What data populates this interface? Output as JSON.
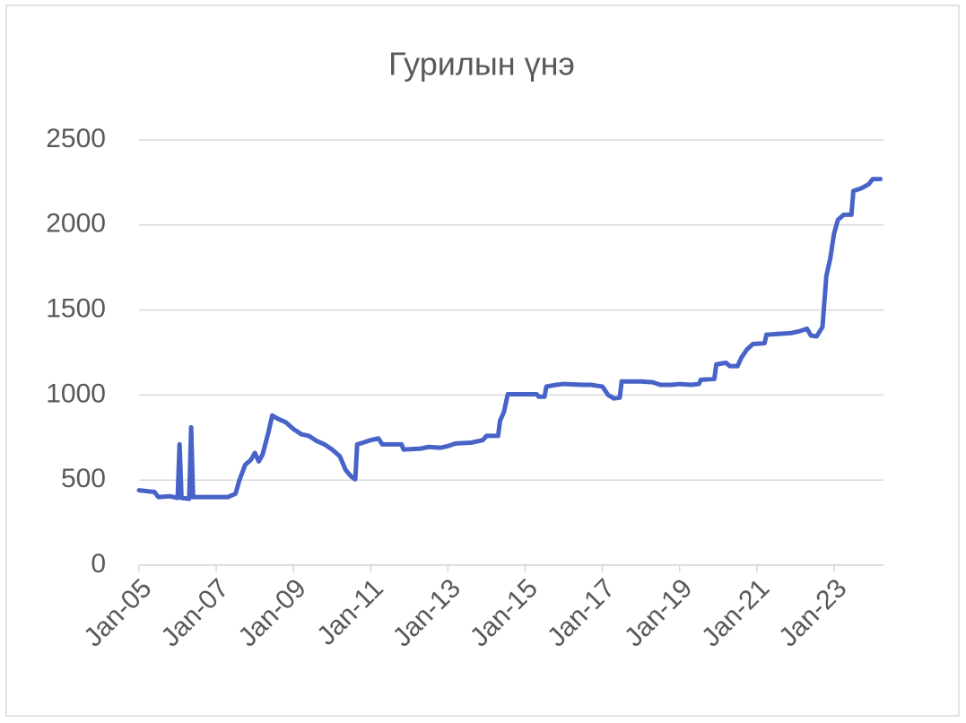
{
  "chart_data": {
    "type": "line",
    "title": "Гурилын үнэ",
    "x": [
      2005.0,
      2005.4,
      2005.5,
      2005.8,
      2006.0,
      2006.05,
      2006.1,
      2006.3,
      2006.35,
      2006.4,
      2007.0,
      2007.3,
      2007.5,
      2007.6,
      2007.75,
      2007.9,
      2008.0,
      2008.1,
      2008.2,
      2008.35,
      2008.45,
      2008.6,
      2008.8,
      2009.0,
      2009.2,
      2009.4,
      2009.6,
      2009.8,
      2010.0,
      2010.2,
      2010.35,
      2010.5,
      2010.6,
      2010.65,
      2010.8,
      2011.0,
      2011.2,
      2011.3,
      2011.8,
      2011.85,
      2012.3,
      2012.5,
      2012.8,
      2013.0,
      2013.2,
      2013.6,
      2013.9,
      2014.0,
      2014.3,
      2014.35,
      2014.45,
      2014.55,
      2015.3,
      2015.35,
      2015.5,
      2015.55,
      2015.8,
      2016.0,
      2016.5,
      2016.7,
      2017.0,
      2017.15,
      2017.3,
      2017.45,
      2017.5,
      2018.0,
      2018.3,
      2018.5,
      2018.8,
      2019.0,
      2019.3,
      2019.5,
      2019.55,
      2019.9,
      2019.95,
      2020.2,
      2020.3,
      2020.5,
      2020.6,
      2020.75,
      2020.9,
      2021.2,
      2021.25,
      2021.6,
      2021.9,
      2022.1,
      2022.3,
      2022.4,
      2022.55,
      2022.7,
      2022.8,
      2022.9,
      2023.0,
      2023.1,
      2023.25,
      2023.45,
      2023.5,
      2023.7,
      2023.9,
      2024.0,
      2024.2
    ],
    "series": [
      {
        "name": "Гурилын үнэ",
        "color": "#4763c8",
        "values": [
          440,
          430,
          400,
          405,
          395,
          710,
          395,
          390,
          810,
          400,
          400,
          400,
          420,
          500,
          590,
          620,
          660,
          610,
          650,
          780,
          880,
          860,
          840,
          800,
          770,
          760,
          730,
          710,
          680,
          640,
          560,
          520,
          505,
          710,
          720,
          735,
          745,
          710,
          710,
          680,
          685,
          695,
          690,
          700,
          715,
          720,
          735,
          760,
          760,
          850,
          900,
          1005,
          1005,
          990,
          990,
          1050,
          1060,
          1065,
          1060,
          1060,
          1050,
          1000,
          980,
          985,
          1080,
          1080,
          1075,
          1060,
          1060,
          1065,
          1060,
          1065,
          1090,
          1095,
          1180,
          1190,
          1170,
          1170,
          1220,
          1270,
          1300,
          1305,
          1355,
          1360,
          1365,
          1375,
          1390,
          1350,
          1345,
          1400,
          1700,
          1800,
          1950,
          2030,
          2060,
          2060,
          2200,
          2215,
          2240,
          2270,
          2270
        ]
      }
    ],
    "xlim": [
      2005,
      2024.28
    ],
    "xticks": [
      {
        "value": 2005,
        "label": "Jan-05"
      },
      {
        "value": 2007,
        "label": "Jan-07"
      },
      {
        "value": 2009,
        "label": "Jan-09"
      },
      {
        "value": 2011,
        "label": "Jan-11"
      },
      {
        "value": 2013,
        "label": "Jan-13"
      },
      {
        "value": 2015,
        "label": "Jan-15"
      },
      {
        "value": 2017,
        "label": "Jan-17"
      },
      {
        "value": 2019,
        "label": "Jan-19"
      },
      {
        "value": 2021,
        "label": "Jan-21"
      },
      {
        "value": 2023,
        "label": "Jan-23"
      }
    ],
    "ylim": [
      0,
      2500
    ],
    "yticks": [
      0,
      500,
      1000,
      1500,
      2000,
      2500
    ],
    "grid": true
  }
}
